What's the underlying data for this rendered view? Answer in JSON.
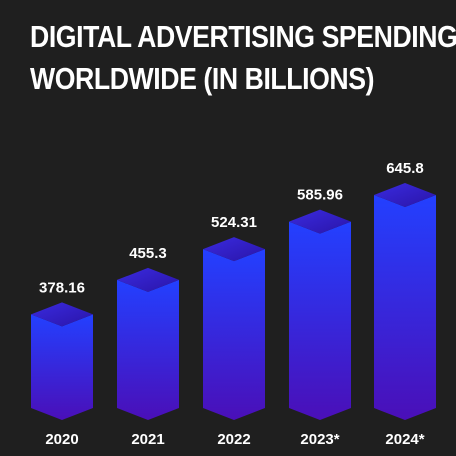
{
  "title_lines": [
    "DIGITAL ADVERTISING SPENDING",
    "WORLDWIDE (IN BILLIONS)"
  ],
  "colors": {
    "background": "#1f1f1f",
    "bar_top": "#2340ff",
    "bar_bottom": "#4a0fb8",
    "cap": "#3a1fc0"
  },
  "chart_data": {
    "type": "bar",
    "title": "DIGITAL ADVERTISING SPENDING WORLDWIDE (IN BILLIONS)",
    "categories": [
      "2020",
      "2021",
      "2022",
      "2023*",
      "2024*"
    ],
    "values": [
      378.16,
      455.3,
      524.31,
      585.96,
      645.8
    ],
    "value_labels": [
      "378.16",
      "455.3",
      "524.31",
      "585.96",
      "645.8"
    ],
    "xlabel": "",
    "ylabel": "",
    "grid": false,
    "legend": "none"
  }
}
